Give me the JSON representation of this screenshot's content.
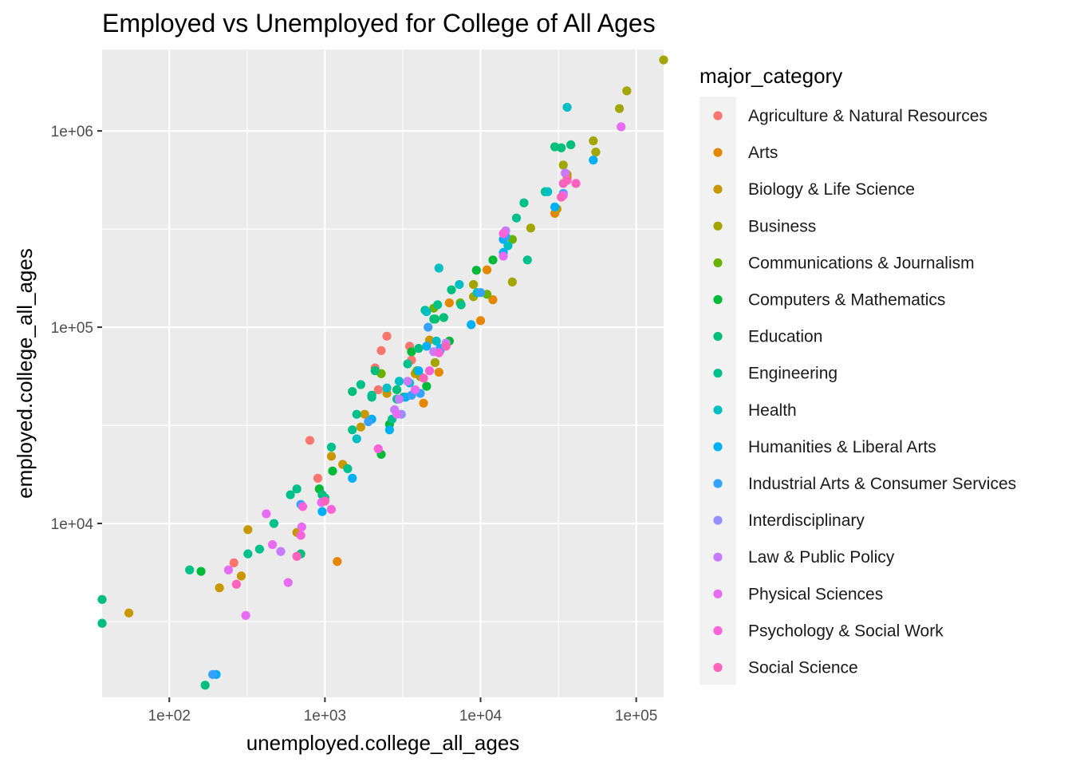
{
  "chart_data": {
    "type": "scatter",
    "title": "Employed vs Unemployed for College of All Ages",
    "xlabel": "unemployed.college_all_ages",
    "ylabel": "employed.college_all_ages",
    "x_scale": "log10",
    "y_scale": "log10",
    "xlim": [
      37,
      150000
    ],
    "ylim": [
      1300,
      2600000
    ],
    "x_ticks": [
      {
        "value": 100,
        "label": "1e+02"
      },
      {
        "value": 1000,
        "label": "1e+03"
      },
      {
        "value": 10000,
        "label": "1e+04"
      },
      {
        "value": 100000,
        "label": "1e+05"
      }
    ],
    "y_ticks": [
      {
        "value": 10000,
        "label": "1e+04"
      },
      {
        "value": 100000,
        "label": "1e+05"
      },
      {
        "value": 1000000,
        "label": "1e+06"
      }
    ],
    "grid": true,
    "legend": {
      "title": "major_category",
      "position": "right"
    },
    "series": [
      {
        "name": "Agriculture & Natural Resources",
        "color": "#F8766D",
        "points": [
          [
            800,
            26500
          ],
          [
            2300,
            76000
          ],
          [
            2100,
            62000
          ],
          [
            2200,
            48000
          ],
          [
            3600,
            68000
          ],
          [
            3500,
            80000
          ],
          [
            2500,
            90000
          ],
          [
            900,
            17000
          ],
          [
            260,
            6300
          ]
        ]
      },
      {
        "name": "Arts",
        "color": "#E58700",
        "points": [
          [
            1200,
            6400
          ],
          [
            4300,
            41000
          ],
          [
            5400,
            59000
          ],
          [
            10000,
            108000
          ],
          [
            12000,
            138000
          ],
          [
            11000,
            196000
          ],
          [
            30000,
            380000
          ],
          [
            36000,
            580000
          ],
          [
            6300,
            133000
          ]
        ]
      },
      {
        "name": "Biology & Life Science",
        "color": "#C99800",
        "points": [
          [
            55,
            3500
          ],
          [
            210,
            4700
          ],
          [
            290,
            5400
          ],
          [
            320,
            9300
          ],
          [
            660,
            9000
          ],
          [
            1100,
            22000
          ],
          [
            1300,
            20000
          ],
          [
            1800,
            36000
          ],
          [
            1700,
            31000
          ],
          [
            2500,
            46000
          ],
          [
            3800,
            58000
          ],
          [
            4700,
            86000
          ],
          [
            31000,
            400000
          ],
          [
            36000,
            600000
          ]
        ]
      },
      {
        "name": "Business",
        "color": "#A3A500",
        "points": [
          [
            150000,
            2300000
          ],
          [
            87000,
            1600000
          ],
          [
            78000,
            1300000
          ],
          [
            53000,
            890000
          ],
          [
            55000,
            780000
          ],
          [
            34000,
            670000
          ],
          [
            21000,
            320000
          ],
          [
            16000,
            170000
          ],
          [
            9000,
            143000
          ],
          [
            9000,
            165000
          ],
          [
            5100,
            66000
          ],
          [
            4100,
            56000
          ]
        ]
      },
      {
        "name": "Communications & Journalism",
        "color": "#6BB100",
        "points": [
          [
            16000,
            280000
          ],
          [
            11000,
            147000
          ],
          [
            5000,
            125000
          ],
          [
            7400,
            133000
          ],
          [
            2300,
            58000
          ],
          [
            3900,
            60000
          ]
        ]
      },
      {
        "name": "Computers & Mathematics",
        "color": "#00BA38",
        "points": [
          [
            160,
            5700
          ],
          [
            920,
            15000
          ],
          [
            1120,
            18500
          ],
          [
            2300,
            22500
          ],
          [
            2600,
            32000
          ],
          [
            3200,
            44000
          ],
          [
            4500,
            50000
          ],
          [
            6300,
            85000
          ],
          [
            12000,
            220000
          ],
          [
            9400,
            195000
          ],
          [
            5100,
            110000
          ],
          [
            3600,
            75000
          ]
        ]
      },
      {
        "name": "Education",
        "color": "#00BF7D",
        "points": [
          [
            37,
            4100
          ],
          [
            37,
            3100
          ],
          [
            170,
            1500
          ],
          [
            700,
            7000
          ],
          [
            960,
            14000
          ],
          [
            1500,
            47000
          ],
          [
            2000,
            44000
          ],
          [
            2100,
            60000
          ],
          [
            2900,
            48000
          ],
          [
            4000,
            78000
          ],
          [
            5000,
            110000
          ],
          [
            5800,
            112000
          ],
          [
            6500,
            155000
          ],
          [
            33000,
            820000
          ],
          [
            38000,
            850000
          ],
          [
            30000,
            830000
          ]
        ]
      },
      {
        "name": "Engineering",
        "color": "#00C08B",
        "points": [
          [
            135,
            5800
          ],
          [
            320,
            7000
          ],
          [
            380,
            7400
          ],
          [
            600,
            14000
          ],
          [
            470,
            10000
          ],
          [
            660,
            15000
          ],
          [
            1000,
            13500
          ],
          [
            1100,
            24500
          ],
          [
            1400,
            19000
          ],
          [
            1500,
            30000
          ],
          [
            1600,
            36000
          ],
          [
            1700,
            51000
          ],
          [
            2000,
            45000
          ],
          [
            2700,
            34000
          ],
          [
            2900,
            43000
          ],
          [
            3400,
            65000
          ],
          [
            4400,
            122000
          ],
          [
            5300,
            130000
          ],
          [
            7500,
            130000
          ],
          [
            17000,
            360000
          ],
          [
            19000,
            430000
          ],
          [
            20000,
            220000
          ],
          [
            26000,
            490000
          ]
        ]
      },
      {
        "name": "Health",
        "color": "#00BFC4",
        "points": [
          [
            5400,
            200000
          ],
          [
            36000,
            1320000
          ],
          [
            27000,
            490000
          ],
          [
            15000,
            260000
          ],
          [
            9500,
            150000
          ],
          [
            7300,
            165000
          ],
          [
            4500,
            120000
          ],
          [
            5200,
            85000
          ],
          [
            3500,
            52000
          ],
          [
            2500,
            49000
          ],
          [
            1600,
            27000
          ],
          [
            3000,
            53000
          ]
        ]
      },
      {
        "name": "Humanities & Liberal Arts",
        "color": "#00B0F6",
        "points": [
          [
            53000,
            710000
          ],
          [
            30000,
            410000
          ],
          [
            14000,
            280000
          ],
          [
            14000,
            240000
          ],
          [
            8700,
            103000
          ],
          [
            5500,
            78000
          ],
          [
            4500,
            80000
          ],
          [
            4000,
            60000
          ],
          [
            3300,
            44000
          ],
          [
            2600,
            30000
          ],
          [
            2000,
            34000
          ],
          [
            1500,
            17000
          ],
          [
            960,
            11500
          ],
          [
            200,
            1700
          ]
        ]
      },
      {
        "name": "Industrial Arts & Consumer Services",
        "color": "#35A2FF",
        "points": [
          [
            190,
            1700
          ],
          [
            700,
            12500
          ],
          [
            1900,
            33000
          ],
          [
            3600,
            45000
          ],
          [
            4100,
            46000
          ],
          [
            5500,
            76000
          ],
          [
            4600,
            100000
          ],
          [
            14500,
            290000
          ],
          [
            34000,
            480000
          ],
          [
            10000,
            150000
          ]
        ]
      },
      {
        "name": "Interdisciplinary",
        "color": "#9590FF",
        "points": [
          [
            3100,
            36000
          ]
        ]
      },
      {
        "name": "Law & Public Policy",
        "color": "#C77CFF",
        "points": [
          [
            520,
            7200
          ],
          [
            3000,
            43000
          ],
          [
            3400,
            53000
          ],
          [
            5000,
            75000
          ],
          [
            6000,
            83000
          ],
          [
            2800,
            38000
          ],
          [
            35000,
            610000
          ],
          [
            14500,
            310000
          ]
        ]
      },
      {
        "name": "Physical Sciences",
        "color": "#E76BF3",
        "points": [
          [
            240,
            5800
          ],
          [
            310,
            3400
          ],
          [
            460,
            7800
          ],
          [
            420,
            11200
          ],
          [
            580,
            5000
          ],
          [
            710,
            9600
          ],
          [
            950,
            12800
          ],
          [
            2900,
            36000
          ],
          [
            3800,
            48000
          ],
          [
            14000,
            230000
          ],
          [
            34000,
            470000
          ],
          [
            80000,
            1050000
          ]
        ]
      },
      {
        "name": "Psychology & Social Work",
        "color": "#FA62DB",
        "points": [
          [
            720,
            12200
          ],
          [
            700,
            8700
          ],
          [
            1100,
            11800
          ],
          [
            2200,
            24000
          ],
          [
            5400,
            74000
          ],
          [
            4700,
            60000
          ],
          [
            14000,
            300000
          ]
        ]
      },
      {
        "name": "Social Science",
        "color": "#FF62BC",
        "points": [
          [
            270,
            4900
          ],
          [
            660,
            6800
          ],
          [
            1000,
            13000
          ],
          [
            4300,
            55000
          ],
          [
            6000,
            80000
          ],
          [
            34000,
            540000
          ],
          [
            41000,
            540000
          ],
          [
            33000,
            460000
          ],
          [
            36000,
            560000
          ]
        ]
      }
    ]
  }
}
